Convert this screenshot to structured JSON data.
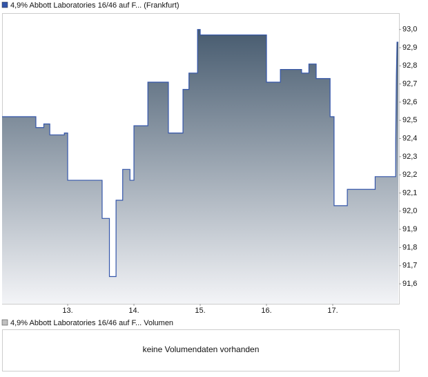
{
  "chart_data": {
    "type": "line",
    "series": [
      {
        "name": "4,9% Abbott Laboratories 16/46 auf F... (Frankfurt)",
        "color": "#3355aa",
        "x": [
          12.01,
          12.52,
          12.52,
          12.64,
          12.64,
          12.73,
          12.73,
          12.95,
          12.95,
          13.0,
          13.0,
          13.52,
          13.52,
          13.63,
          13.63,
          13.73,
          13.73,
          13.83,
          13.83,
          13.94,
          13.94,
          14.0,
          14.0,
          14.21,
          14.21,
          14.52,
          14.52,
          14.74,
          14.74,
          14.83,
          14.83,
          14.96,
          14.96,
          15.0,
          15.0,
          16.0,
          16.0,
          16.21,
          16.21,
          16.53,
          16.53,
          16.64,
          16.64,
          16.75,
          16.75,
          16.96,
          16.96,
          17.02,
          17.02,
          17.22,
          17.22,
          17.64,
          17.64,
          17.95,
          17.95,
          17.96,
          17.97,
          17.99
        ],
        "values": [
          92.52,
          92.52,
          92.46,
          92.46,
          92.48,
          92.48,
          92.42,
          92.42,
          92.43,
          92.43,
          92.17,
          92.17,
          91.96,
          91.96,
          91.64,
          91.64,
          92.06,
          92.06,
          92.23,
          92.23,
          92.17,
          92.17,
          92.47,
          92.47,
          92.71,
          92.71,
          92.43,
          92.43,
          92.67,
          92.67,
          92.76,
          92.76,
          93.0,
          93.0,
          92.97,
          92.97,
          92.71,
          92.71,
          92.78,
          92.78,
          92.76,
          92.76,
          92.81,
          92.81,
          92.73,
          92.73,
          92.52,
          92.52,
          92.03,
          92.03,
          92.12,
          92.12,
          92.19,
          92.19,
          92.38,
          92.74,
          92.93,
          92.93
        ]
      }
    ],
    "xlim": [
      12.01,
      18.0
    ],
    "xticks": [
      {
        "value": 13,
        "label": "13."
      },
      {
        "value": 14,
        "label": "14."
      },
      {
        "value": 15,
        "label": "15."
      },
      {
        "value": 16,
        "label": "16."
      },
      {
        "value": 17,
        "label": "17."
      }
    ],
    "ylim": [
      91.49,
      93.09
    ],
    "yticks": [
      {
        "value": 93.0,
        "label": "93,0"
      },
      {
        "value": 92.9,
        "label": "92,9"
      },
      {
        "value": 92.8,
        "label": "92,8"
      },
      {
        "value": 92.7,
        "label": "92,7"
      },
      {
        "value": 92.6,
        "label": "92,6"
      },
      {
        "value": 92.5,
        "label": "92,5"
      },
      {
        "value": 92.4,
        "label": "92,4"
      },
      {
        "value": 92.3,
        "label": "92,3"
      },
      {
        "value": 92.2,
        "label": "92,2"
      },
      {
        "value": 92.1,
        "label": "92,1"
      },
      {
        "value": 92.0,
        "label": "92,0"
      },
      {
        "value": 91.9,
        "label": "91,9"
      },
      {
        "value": 91.8,
        "label": "91,8"
      },
      {
        "value": 91.7,
        "label": "91,7"
      },
      {
        "value": 91.6,
        "label": "91,6"
      }
    ],
    "grid": false
  },
  "volume_panel": {
    "legend": "4,9% Abbott Laboratories 16/46 auf F... Volumen",
    "color": "#c0c0c0",
    "message": "keine Volumendaten vorhanden"
  }
}
